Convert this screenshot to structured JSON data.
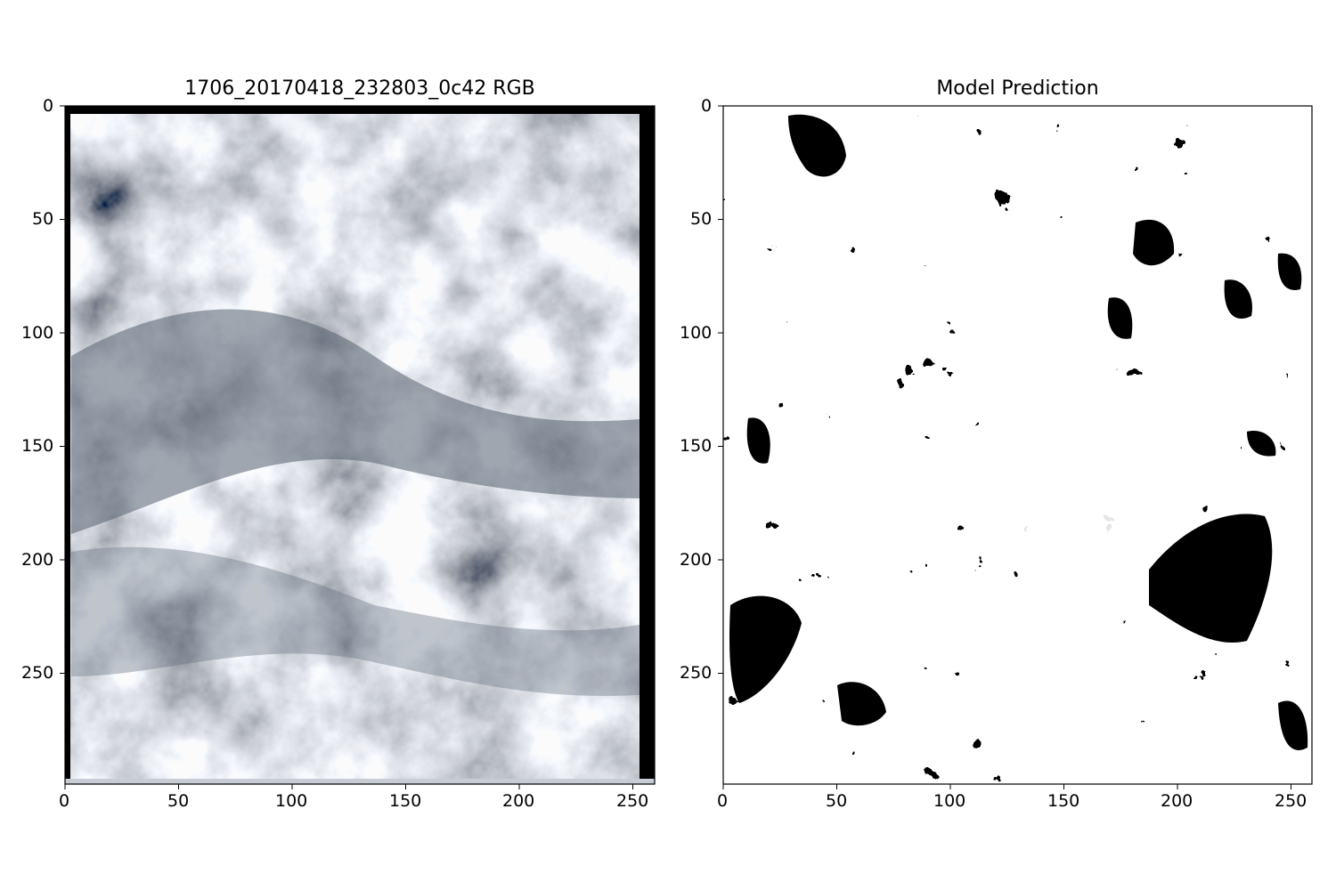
{
  "left_panel": {
    "title": "1706_20170418_232803_0c42 RGB",
    "xticks": [
      "0",
      "50",
      "100",
      "150",
      "200",
      "250"
    ],
    "yticks": [
      "0",
      "50",
      "100",
      "150",
      "200",
      "250"
    ],
    "xrange": [
      0,
      260
    ],
    "yrange": [
      0,
      299
    ],
    "content": "grayscale cloud satellite image"
  },
  "right_panel": {
    "title": "Model Prediction",
    "xticks": [
      "0",
      "50",
      "100",
      "150",
      "200",
      "250"
    ],
    "yticks": [
      "0",
      "50",
      "100",
      "150",
      "200",
      "250"
    ],
    "xrange": [
      0,
      260
    ],
    "yrange": [
      0,
      299
    ],
    "content": "binary black/white segmentation mask"
  },
  "colors": {
    "cloud_light": "#d9dde6",
    "cloud_dark": "#4f5868",
    "mask_black": "#000000",
    "mask_white": "#ffffff"
  }
}
